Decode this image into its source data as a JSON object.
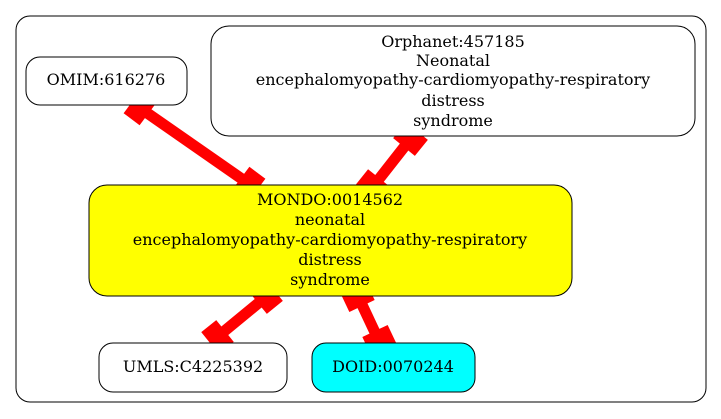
{
  "diagram": {
    "colors": {
      "edge": "#ff0000",
      "border": "#000000",
      "background": "#ffffff",
      "focus_fill": "#ffff00",
      "highlight_fill": "#00ffff"
    },
    "nodes": {
      "omim": {
        "id": "OMIM:616276",
        "fill": "#ffffff"
      },
      "orphanet": {
        "id": "Orphanet:457185",
        "label_lines": [
          "Neonatal",
          "encephalomyopathy-cardiomyopathy-respiratory",
          "distress",
          "syndrome"
        ],
        "fill": "#ffffff"
      },
      "mondo": {
        "id": "MONDO:0014562",
        "label_lines": [
          "neonatal",
          "encephalomyopathy-cardiomyopathy-respiratory",
          "distress",
          "syndrome"
        ],
        "fill": "#ffff00"
      },
      "umls": {
        "id": "UMLS:C4225392",
        "fill": "#ffffff"
      },
      "doid": {
        "id": "DOID:0070244",
        "fill": "#00ffff"
      }
    }
  }
}
